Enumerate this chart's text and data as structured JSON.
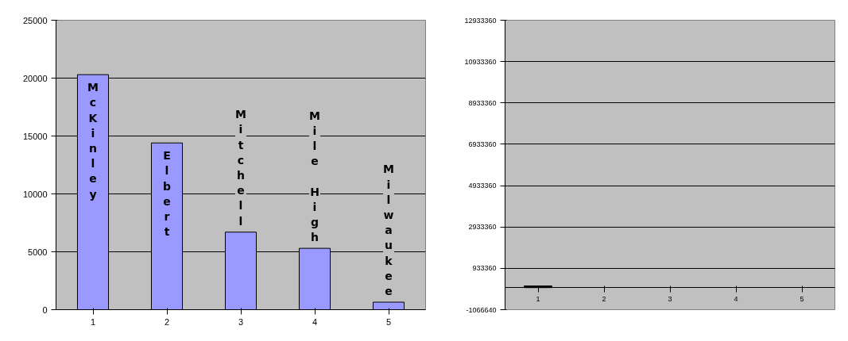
{
  "chart_data": [
    {
      "type": "bar",
      "categories": [
        "1",
        "2",
        "3",
        "4",
        "5"
      ],
      "values": [
        20300,
        14400,
        6700,
        5300,
        650
      ],
      "color": "#9999ff",
      "ylim": [
        0,
        25000
      ],
      "yticks": [
        0,
        5000,
        10000,
        15000,
        20000,
        25000
      ],
      "grid": "y",
      "annotations": [
        "McKinley",
        "Elbert",
        "Mitchell",
        "Mile High",
        "Milwaukee"
      ]
    },
    {
      "type": "bar",
      "categories": [
        "1",
        "2",
        "3",
        "4",
        "5"
      ],
      "values": [
        80000,
        null,
        null,
        null,
        null
      ],
      "color": "#000000",
      "ylim": [
        -1066640,
        12933360
      ],
      "yticks": [
        -1066640,
        933360,
        2933360,
        4933360,
        6933360,
        8933360,
        10933360,
        12933360
      ],
      "grid": "y"
    }
  ]
}
